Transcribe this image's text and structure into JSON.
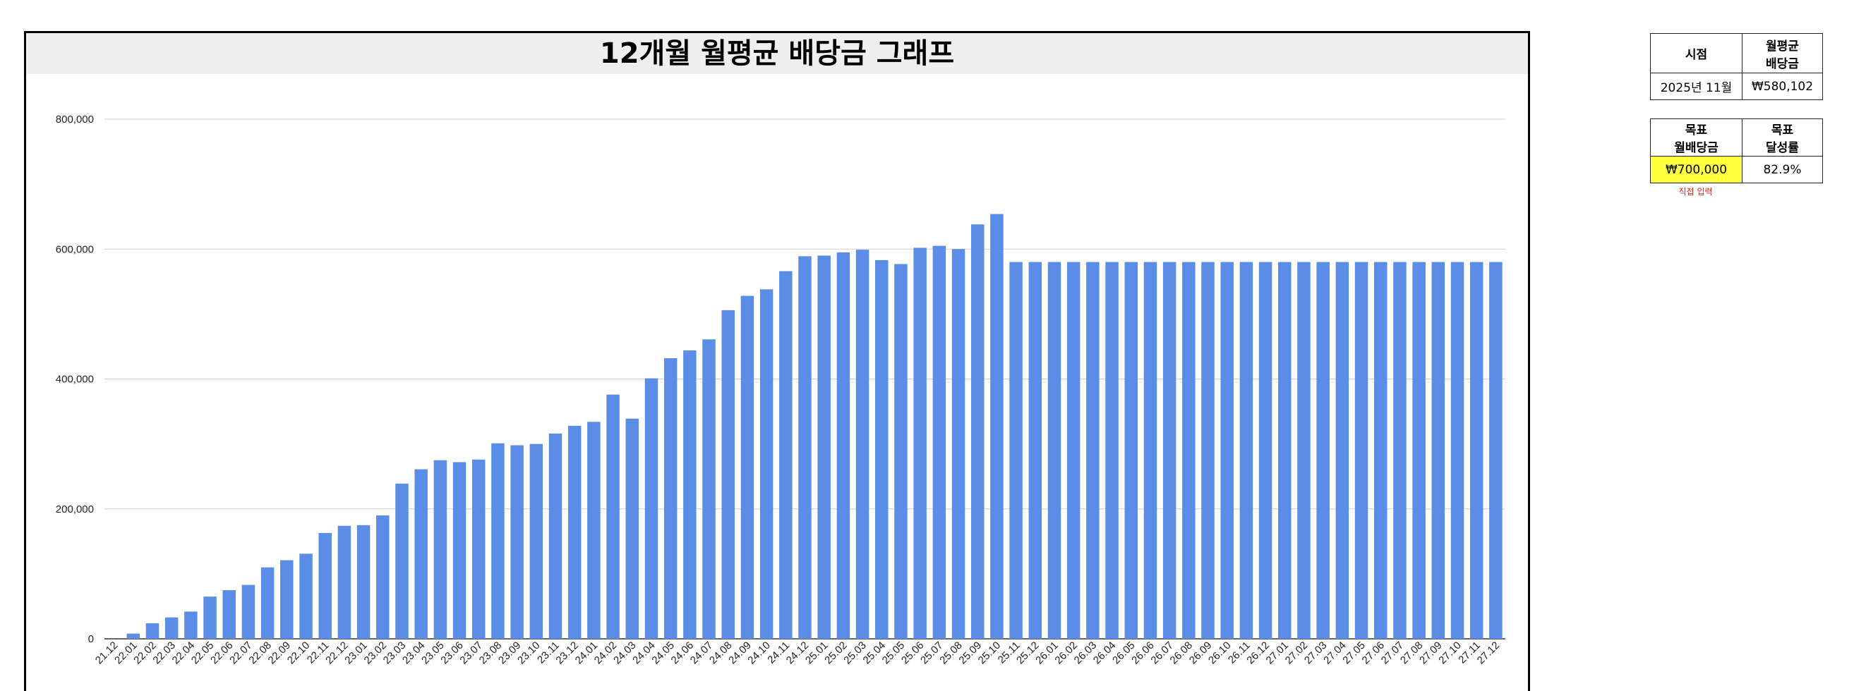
{
  "chart_data": {
    "type": "bar",
    "title": "12개월 월평균 배당금 그래프",
    "xlabel": "",
    "ylabel": "",
    "ylim": [
      0,
      800000
    ],
    "y_ticks": [
      0,
      200000,
      400000,
      600000,
      800000
    ],
    "y_tick_labels": [
      "0",
      "200,000",
      "400,000",
      "600,000",
      "800,000"
    ],
    "grid": true,
    "bar_color": "#5b8de6",
    "categories": [
      "21.12",
      "22.01",
      "22.02",
      "22.03",
      "22.04",
      "22.05",
      "22.06",
      "22.07",
      "22.08",
      "22.09",
      "22.10",
      "22.11",
      "22.12",
      "23.01",
      "23.02",
      "23.03",
      "23.04",
      "23.05",
      "23.06",
      "23.07",
      "23.08",
      "23.09",
      "23.10",
      "23.11",
      "23.12",
      "24.01",
      "24.02",
      "24.03",
      "24.04",
      "24.05",
      "24.06",
      "24.07",
      "24.08",
      "24.09",
      "24.10",
      "24.11",
      "24.12",
      "25.01",
      "25.02",
      "25.03",
      "25.04",
      "25.05",
      "25.06",
      "25.07",
      "25.08",
      "25.09",
      "25.10",
      "25.11",
      "25.12",
      "26.01",
      "26.02",
      "26.03",
      "26.04",
      "26.05",
      "26.06",
      "26.07",
      "26.08",
      "26.09",
      "26.10",
      "26.11",
      "26.12",
      "27.01",
      "27.02",
      "27.03",
      "27.04",
      "27.05",
      "27.06",
      "27.07",
      "27.08",
      "27.09",
      "27.10",
      "27.11",
      "27.12"
    ],
    "values": [
      0,
      8000,
      24000,
      33000,
      42000,
      65000,
      75000,
      83000,
      110000,
      121000,
      131000,
      163000,
      174000,
      175000,
      190000,
      239000,
      261000,
      275000,
      272000,
      276000,
      301000,
      298000,
      300000,
      316000,
      328000,
      334000,
      376000,
      339000,
      401000,
      432000,
      444000,
      461000,
      506000,
      528000,
      538000,
      566000,
      589000,
      590000,
      595000,
      599000,
      583000,
      577000,
      602000,
      605000,
      600000,
      638000,
      654000,
      580102,
      580102,
      580102,
      580102,
      580102,
      580102,
      580102,
      580102,
      580102,
      580102,
      580102,
      580102,
      580102,
      580102,
      580102,
      580102,
      580102,
      580102,
      580102,
      580102,
      580102,
      580102,
      580102,
      580102,
      580102,
      580102
    ]
  },
  "summary_table": {
    "col1_header": "시점",
    "col2_header_line1": "월평균",
    "col2_header_line2": "배당금",
    "point_in_time": "2025년 11월",
    "monthly_avg_dividend": "₩580,102"
  },
  "goal_table": {
    "col1_header_line1": "목표",
    "col1_header_line2": "월배당금",
    "col2_header_line1": "목표",
    "col2_header_line2": "달성률",
    "target_value": "₩700,000",
    "achievement_rate": "82.9%",
    "target_color": "#ffff3d"
  },
  "note": "직접 입력",
  "note_color": "#e0201a"
}
